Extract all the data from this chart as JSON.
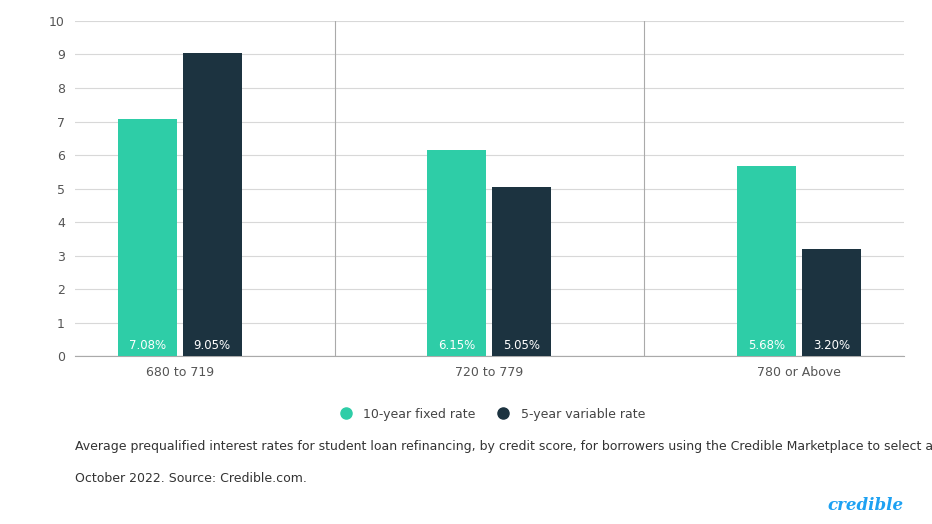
{
  "groups": [
    "680 to 719",
    "720 to 779",
    "780 or Above"
  ],
  "fixed_values": [
    7.08,
    6.15,
    5.68
  ],
  "variable_values": [
    9.05,
    5.05,
    3.2
  ],
  "fixed_labels": [
    "7.08%",
    "6.15%",
    "5.68%"
  ],
  "variable_labels": [
    "9.05%",
    "5.05%",
    "3.20%"
  ],
  "fixed_color": "#2ECDA7",
  "variable_color": "#1C3340",
  "ylim": [
    0,
    10
  ],
  "yticks": [
    0,
    1,
    2,
    3,
    4,
    5,
    6,
    7,
    8,
    9,
    10
  ],
  "legend_fixed": "10-year fixed rate",
  "legend_variable": "5-year variable rate",
  "caption_line1": "Average prequalified interest rates for student loan refinancing, by credit score, for borrowers using the Credible Marketplace to select a lender in",
  "caption_line2": "October 2022. Source: Credible.com.",
  "brand": "credible",
  "brand_color": "#1DA1F2",
  "background_color": "#FFFFFF",
  "bar_width": 0.38,
  "label_fontsize": 8.5,
  "tick_fontsize": 9,
  "legend_fontsize": 9,
  "caption_fontsize": 9
}
